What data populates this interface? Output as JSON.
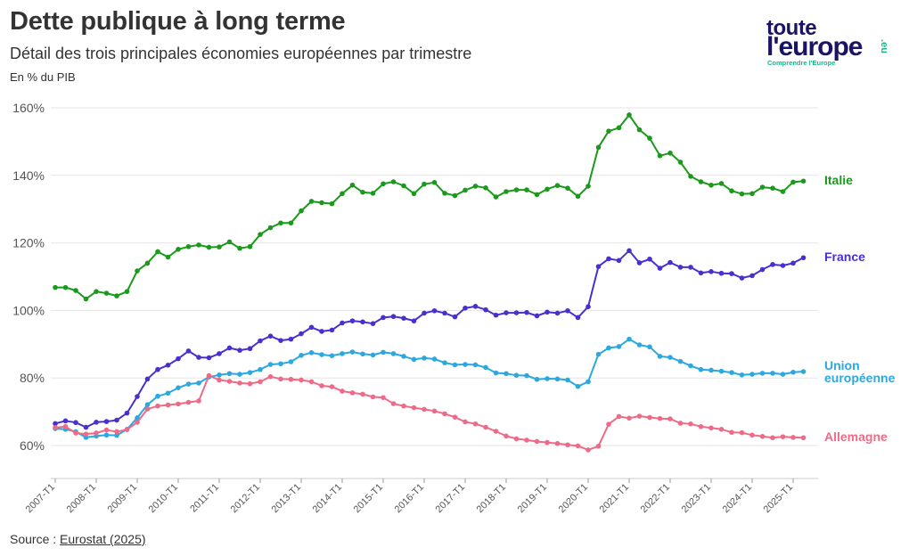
{
  "header": {
    "title": "Dette publique à long terme",
    "subtitle": "Détail des trois principales économies européennes par trimestre",
    "unit": "En % du PIB"
  },
  "logo": {
    "line1": "toute",
    "line2": "l'europe",
    "tagline": "Comprendre l'Europe",
    "suffix": ".eu"
  },
  "source": {
    "prefix": "Source : ",
    "link_text": "Eurostat (2025)"
  },
  "colors": {
    "italie": "#1a9a1a",
    "france": "#4a2fd0",
    "ue": "#2ba8e0",
    "allemagne": "#ee6b88",
    "grid": "#e6e6e6"
  },
  "chart_data": {
    "type": "line",
    "title": "Dette publique à long terme",
    "subtitle": "Détail des trois principales économies européennes par trimestre",
    "ylabel": "En % du PIB",
    "ylim": [
      50,
      162
    ],
    "yticks": [
      60,
      80,
      100,
      120,
      140,
      160
    ],
    "ytick_labels": [
      "60%",
      "80%",
      "100%",
      "120%",
      "140%",
      "160%"
    ],
    "x_start": "2007-T1",
    "x_end": "2025-T2",
    "xtick_labels": [
      "2007-T1",
      "2008-T1",
      "2009-T1",
      "2010-T1",
      "2011-T1",
      "2012-T1",
      "2013-T1",
      "2014-T1",
      "2015-T1",
      "2016-T1",
      "2017-T1",
      "2018-T1",
      "2019-T1",
      "2020-T1",
      "2021-T1",
      "2022-T1",
      "2023-T1",
      "2024-T1",
      "2025-T1"
    ],
    "grid": "horizontal",
    "legend": "direct labels at line ends (right)",
    "series": [
      {
        "name": "Italie",
        "label": "Italie",
        "color": "#1a9a1a",
        "values": [
          106.8,
          106.8,
          105.9,
          103.4,
          105.6,
          105.1,
          104.3,
          105.6,
          111.7,
          114.0,
          117.4,
          115.8,
          118.1,
          118.9,
          119.4,
          118.7,
          118.8,
          120.3,
          118.4,
          118.9,
          122.5,
          124.5,
          125.9,
          125.9,
          129.5,
          132.3,
          131.9,
          131.6,
          134.6,
          137.1,
          135.0,
          134.7,
          137.5,
          138.1,
          136.9,
          134.6,
          137.4,
          137.9,
          134.7,
          134.0,
          135.6,
          136.8,
          136.3,
          133.6,
          135.2,
          135.7,
          135.7,
          134.3,
          135.9,
          137.0,
          136.2,
          133.8,
          136.8,
          148.3,
          153.1,
          154.1,
          157.9,
          153.5,
          151.0,
          145.8,
          146.6,
          143.9,
          139.7,
          138.1,
          137.1,
          137.6,
          135.4,
          134.5,
          134.6,
          136.5,
          136.2,
          135.2,
          138.0,
          138.3
        ]
      },
      {
        "name": "France",
        "label": "France",
        "color": "#4a2fd0",
        "values": [
          66.5,
          67.3,
          66.8,
          65.4,
          66.9,
          67.1,
          67.5,
          69.6,
          74.5,
          79.7,
          82.5,
          83.8,
          85.7,
          88.0,
          86.1,
          86.0,
          87.2,
          88.9,
          88.2,
          88.7,
          91.0,
          92.4,
          91.1,
          91.5,
          93.1,
          95.0,
          93.8,
          94.2,
          96.3,
          96.9,
          96.6,
          96.1,
          97.9,
          98.2,
          97.7,
          96.9,
          99.2,
          99.9,
          99.2,
          98.1,
          100.7,
          101.2,
          100.2,
          98.6,
          99.3,
          99.3,
          99.4,
          98.4,
          99.5,
          99.2,
          99.9,
          97.9,
          101.1,
          113.0,
          115.3,
          114.8,
          117.7,
          114.1,
          115.2,
          112.5,
          114.2,
          112.8,
          112.8,
          111.1,
          111.5,
          111.0,
          110.9,
          109.6,
          110.3,
          112.1,
          113.6,
          113.3,
          114.0,
          115.6
        ]
      },
      {
        "name": "Union européenne",
        "label": "Union européenne",
        "color": "#2ba8e0",
        "values": [
          65.0,
          64.8,
          64.1,
          62.4,
          62.8,
          63.1,
          63.0,
          64.8,
          68.2,
          72.1,
          74.6,
          75.5,
          77.1,
          78.2,
          78.5,
          80.3,
          80.9,
          81.3,
          81.1,
          81.6,
          82.5,
          84.0,
          84.2,
          84.8,
          86.7,
          87.5,
          86.9,
          86.6,
          87.2,
          87.7,
          87.1,
          86.8,
          87.6,
          87.2,
          86.4,
          85.5,
          85.9,
          85.6,
          84.5,
          83.9,
          84.0,
          83.9,
          83.1,
          81.5,
          81.3,
          80.8,
          80.7,
          79.6,
          79.8,
          79.7,
          79.4,
          77.5,
          78.9,
          87.0,
          88.9,
          89.3,
          91.5,
          89.8,
          89.2,
          86.4,
          86.1,
          84.9,
          83.6,
          82.5,
          82.3,
          82.0,
          81.6,
          80.9,
          81.1,
          81.4,
          81.4,
          81.1,
          81.7,
          81.9
        ]
      },
      {
        "name": "Allemagne",
        "label": "Allemagne",
        "color": "#ee6b88",
        "values": [
          65.3,
          65.6,
          63.7,
          63.4,
          63.7,
          64.6,
          64.1,
          64.7,
          66.9,
          70.8,
          71.7,
          72.0,
          72.3,
          72.8,
          73.2,
          80.7,
          79.4,
          79.0,
          78.5,
          78.3,
          78.9,
          80.4,
          79.7,
          79.6,
          79.4,
          78.9,
          77.7,
          77.4,
          76.1,
          75.6,
          75.2,
          74.4,
          74.2,
          72.4,
          71.7,
          71.2,
          70.7,
          70.2,
          69.4,
          68.4,
          67.0,
          66.4,
          65.4,
          64.2,
          62.8,
          62.0,
          61.6,
          61.2,
          60.9,
          60.6,
          60.2,
          59.9,
          58.7,
          59.8,
          66.3,
          68.6,
          68.1,
          68.7,
          68.3,
          68.0,
          67.9,
          66.6,
          66.4,
          65.6,
          65.2,
          64.8,
          63.9,
          63.8,
          63.1,
          62.7,
          62.3,
          62.6,
          62.4,
          62.3
        ]
      }
    ]
  }
}
